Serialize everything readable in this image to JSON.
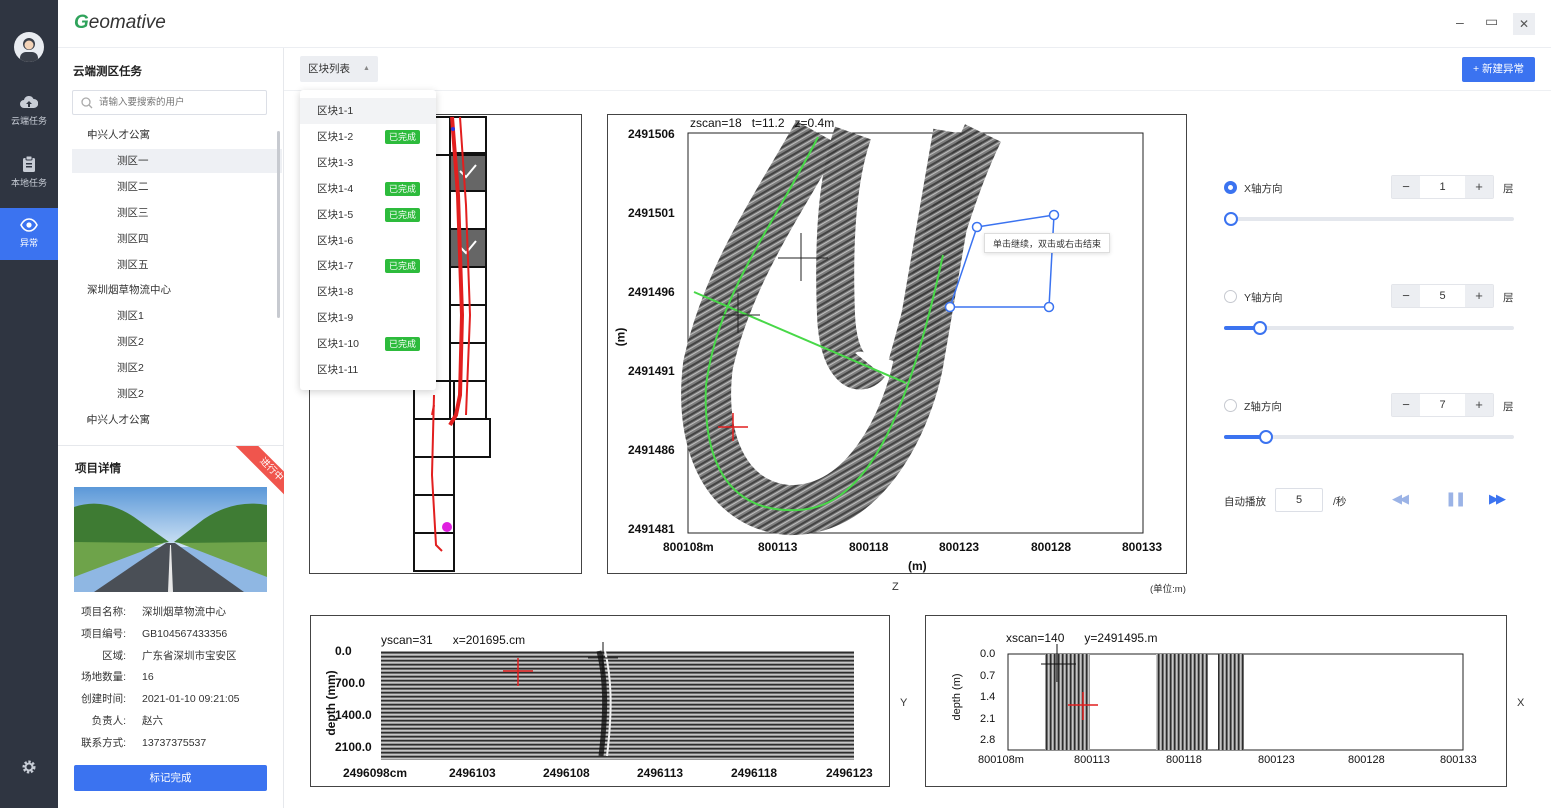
{
  "app": {
    "brand_first": "G",
    "brand_rest": "eomative"
  },
  "nav": [
    {
      "icon": "cloud-upload-icon",
      "label": "云端任务"
    },
    {
      "icon": "clipboard-icon",
      "label": "本地任务"
    },
    {
      "icon": "eye-icon",
      "label": "异常"
    }
  ],
  "window": {
    "minimize": "–",
    "maximize": "▭",
    "close": "✕"
  },
  "sidebar": {
    "title": "云端测区任务",
    "search_placeholder": "请输入要搜索的用户",
    "tree": [
      {
        "label": "中兴人才公寓",
        "type": "parent",
        "caret": "▼"
      },
      {
        "label": "测区一",
        "type": "leaf",
        "selected": true
      },
      {
        "label": "测区二",
        "type": "leaf"
      },
      {
        "label": "测区三",
        "type": "leaf"
      },
      {
        "label": "测区四",
        "type": "leaf"
      },
      {
        "label": "测区五",
        "type": "leaf"
      },
      {
        "label": "深圳烟草物流中心",
        "type": "parent",
        "caret": "▼"
      },
      {
        "label": "测区1",
        "type": "leaf"
      },
      {
        "label": "测区2",
        "type": "leaf"
      },
      {
        "label": "测区2",
        "type": "leaf"
      },
      {
        "label": "测区2",
        "type": "leaf"
      },
      {
        "label": "中兴人才公寓",
        "type": "parent",
        "caret": "▶"
      }
    ]
  },
  "project": {
    "title": "项目详情",
    "ribbon": "进行中",
    "rows": [
      {
        "k": "项目名称:",
        "v": "深圳烟草物流中心"
      },
      {
        "k": "项目编号:",
        "v": "GB104567433356"
      },
      {
        "k": "区域:",
        "v": "广东省深圳市宝安区"
      },
      {
        "k": "场地数量:",
        "v": "16"
      },
      {
        "k": "创建时间:",
        "v": "2021-01-10 09:21:05"
      },
      {
        "k": "负责人:",
        "v": "赵六"
      },
      {
        "k": "联系方式:",
        "v": "13737375537"
      }
    ],
    "complete_button": "标记完成"
  },
  "toolbar": {
    "block_list": "区块列表",
    "block_list_caret": "▲",
    "new_anomaly": "+ 新建异常"
  },
  "blocks": [
    {
      "label": "区块1-1",
      "done": false
    },
    {
      "label": "区块1-2",
      "done": true
    },
    {
      "label": "区块1-3",
      "done": false
    },
    {
      "label": "区块1-4",
      "done": true
    },
    {
      "label": "区块1-5",
      "done": true
    },
    {
      "label": "区块1-6",
      "done": false
    },
    {
      "label": "区块1-7",
      "done": true
    },
    {
      "label": "区块1-8",
      "done": false
    },
    {
      "label": "区块1-9",
      "done": false
    },
    {
      "label": "区块1-10",
      "done": true
    },
    {
      "label": "区块1-11",
      "done": false
    }
  ],
  "done_badge": "已完成",
  "zscan": {
    "header": "zscan=18   t=11.2   z=0.4m",
    "y_ticks": [
      "2491506",
      "2491501",
      "2491496",
      "2491491",
      "2491486",
      "2491481"
    ],
    "x_ticks": [
      "800108m",
      "800113",
      "800118",
      "800123",
      "800128",
      "800133"
    ],
    "x_unit": "(m)",
    "y_unit": "(m)",
    "axis_name": "Z",
    "unit_note": "(单位:m)",
    "tooltip": "单击继续，双击或右击结束"
  },
  "yscan": {
    "header": "yscan=31      x=201695.cm",
    "y_ticks": [
      "0.0",
      "700.0",
      "1400.0",
      "2100.0"
    ],
    "x_ticks": [
      "2496098cm",
      "2496103",
      "2496108",
      "2496113",
      "2496118",
      "2496123"
    ],
    "ylabel": "depth (mm)",
    "axis_name": "Y"
  },
  "xscan": {
    "header": "xscan=140      y=2491495.m",
    "y_ticks": [
      "0.0",
      "0.7",
      "1.4",
      "2.1",
      "2.8"
    ],
    "x_ticks": [
      "800108m",
      "800113",
      "800118",
      "800123",
      "800128",
      "800133"
    ],
    "ylabel": "depth (m)",
    "axis_name": "X"
  },
  "controls": {
    "axes": [
      {
        "label": "X轴方向",
        "value": "1",
        "layer_label": "层",
        "selected": true,
        "level": 0.02
      },
      {
        "label": "Y轴方向",
        "value": "5",
        "layer_label": "层",
        "selected": false,
        "level": 0.12
      },
      {
        "label": "Z轴方向",
        "value": "7",
        "layer_label": "层",
        "selected": false,
        "level": 0.14
      }
    ],
    "minus": "−",
    "plus": "+",
    "autoplay_label": "自动播放",
    "autoplay_value": "5",
    "autoplay_unit": "/秒",
    "rewind": "◀◀",
    "pause": "❚❚",
    "forward": "▶▶"
  },
  "colors": {
    "accent": "#3b73f0",
    "done": "#2dbb3c",
    "sidebar_bg": "#2f3541",
    "ribbon": "#f0554d"
  }
}
